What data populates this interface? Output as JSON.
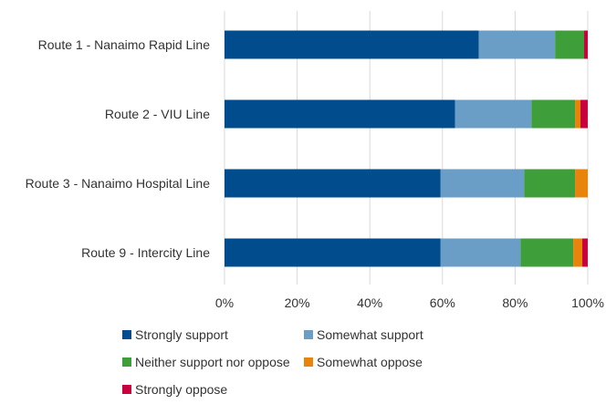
{
  "chart_data": {
    "type": "bar",
    "orientation": "horizontal",
    "stacked": true,
    "categories": [
      "Route 1 - Nanaimo Rapid Line",
      "Route 2 - VIU Line",
      "Route 3 - Nanaimo Hospital Line",
      "Route 9 - Intercity Line"
    ],
    "series": [
      {
        "name": "Strongly support",
        "color": "#004c8c",
        "values": [
          70,
          63.5,
          59.5,
          59.5
        ]
      },
      {
        "name": "Somewhat support",
        "color": "#6b9ec7",
        "values": [
          21,
          21,
          23,
          22
        ]
      },
      {
        "name": "Neither support nor oppose",
        "color": "#3d9e3a",
        "values": [
          8,
          12,
          14,
          14.5
        ]
      },
      {
        "name": "Somewhat oppose",
        "color": "#e8830c",
        "values": [
          0,
          1.5,
          3.5,
          2.5
        ]
      },
      {
        "name": "Strongly oppose",
        "color": "#c8003e",
        "values": [
          1,
          2,
          0,
          1.5
        ]
      }
    ],
    "xlim": [
      0,
      100
    ],
    "xticks": [
      "0%",
      "20%",
      "40%",
      "60%",
      "80%",
      "100%"
    ],
    "grid": "vertical",
    "legend": "bottom"
  }
}
